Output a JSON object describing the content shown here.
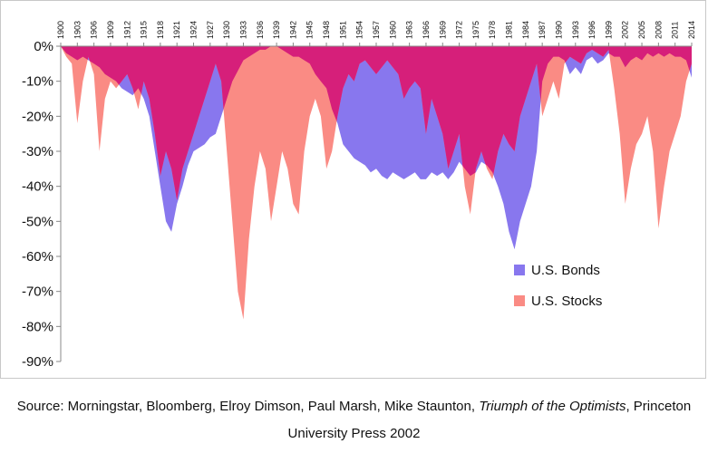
{
  "chart_data": {
    "type": "area",
    "title": "",
    "xlabel": "",
    "ylabel": "",
    "ylim": [
      -90,
      0
    ],
    "yticks": [
      0,
      -10,
      -20,
      -30,
      -40,
      -50,
      -60,
      -70,
      -80,
      -90
    ],
    "ytick_labels": [
      "0%",
      "-10%",
      "-20%",
      "-30%",
      "-40%",
      "-50%",
      "-60%",
      "-70%",
      "-80%",
      "-90%"
    ],
    "xlim": [
      1900,
      2014
    ],
    "xticks": [
      "1900",
      "1903",
      "1906",
      "1909",
      "1912",
      "1915",
      "1918",
      "1921",
      "1924",
      "1927",
      "1930",
      "1933",
      "1936",
      "1939",
      "1942",
      "1945",
      "1948",
      "1951",
      "1954",
      "1957",
      "1960",
      "1963",
      "1966",
      "1969",
      "1972",
      "1975",
      "1978",
      "1981",
      "1984",
      "1987",
      "1990",
      "1993",
      "1996",
      "1999",
      "2002",
      "2005",
      "2008",
      "2011",
      "2014"
    ],
    "legend_position": "right",
    "overlap_color": "#d61f7a",
    "series": [
      {
        "name": "U.S. Bonds",
        "color": "#8877ee",
        "x": [
          1900,
          1901,
          1902,
          1903,
          1904,
          1905,
          1906,
          1907,
          1908,
          1909,
          1910,
          1911,
          1912,
          1913,
          1914,
          1915,
          1916,
          1917,
          1918,
          1919,
          1920,
          1921,
          1922,
          1923,
          1924,
          1925,
          1926,
          1927,
          1928,
          1929,
          1930,
          1931,
          1932,
          1933,
          1934,
          1935,
          1936,
          1937,
          1938,
          1939,
          1940,
          1941,
          1942,
          1943,
          1944,
          1945,
          1946,
          1947,
          1948,
          1949,
          1950,
          1951,
          1952,
          1953,
          1954,
          1955,
          1956,
          1957,
          1958,
          1959,
          1960,
          1961,
          1962,
          1963,
          1964,
          1965,
          1966,
          1967,
          1968,
          1969,
          1970,
          1971,
          1972,
          1973,
          1974,
          1975,
          1976,
          1977,
          1978,
          1979,
          1980,
          1981,
          1982,
          1983,
          1984,
          1985,
          1986,
          1987,
          1988,
          1989,
          1990,
          1991,
          1992,
          1993,
          1994,
          1995,
          1996,
          1997,
          1998,
          1999,
          2000,
          2001,
          2002,
          2003,
          2004,
          2005,
          2006,
          2007,
          2008,
          2009,
          2010,
          2011,
          2012,
          2013,
          2014
        ],
        "values": [
          0,
          -2,
          -3,
          -4,
          -3,
          -4,
          -5,
          -6,
          -8,
          -9,
          -10,
          -12,
          -13,
          -14,
          -12,
          -15,
          -20,
          -30,
          -40,
          -50,
          -53,
          -45,
          -40,
          -34,
          -30,
          -29,
          -28,
          -26,
          -25,
          -20,
          -15,
          -10,
          -7,
          -4,
          -3,
          -2,
          -1,
          -1,
          0,
          0,
          -1,
          -2,
          -3,
          -3,
          -4,
          -5,
          -8,
          -10,
          -12,
          -18,
          -22,
          -28,
          -30,
          -32,
          -33,
          -34,
          -36,
          -35,
          -37,
          -38,
          -36,
          -37,
          -38,
          -37,
          -36,
          -38,
          -38,
          -36,
          -37,
          -36,
          -38,
          -36,
          -33,
          -35,
          -37,
          -36,
          -33,
          -34,
          -36,
          -40,
          -45,
          -53,
          -58,
          -50,
          -45,
          -40,
          -30,
          -10,
          -5,
          -3,
          -3,
          -4,
          -8,
          -6,
          -8,
          -4,
          -3,
          -5,
          -4,
          -2,
          -3,
          -3,
          -6,
          -4,
          -3,
          -4,
          -2,
          -3,
          -2,
          -3,
          -2,
          -3,
          -3,
          -4,
          -9
        ]
      },
      {
        "name": "U.S. Stocks",
        "color": "#fa8b84",
        "x": [
          1900,
          1901,
          1902,
          1903,
          1904,
          1905,
          1906,
          1907,
          1908,
          1909,
          1910,
          1911,
          1912,
          1913,
          1914,
          1915,
          1916,
          1917,
          1918,
          1919,
          1920,
          1921,
          1922,
          1923,
          1924,
          1925,
          1926,
          1927,
          1928,
          1929,
          1930,
          1931,
          1932,
          1933,
          1934,
          1935,
          1936,
          1937,
          1938,
          1939,
          1940,
          1941,
          1942,
          1943,
          1944,
          1945,
          1946,
          1947,
          1948,
          1949,
          1950,
          1951,
          1952,
          1953,
          1954,
          1955,
          1956,
          1957,
          1958,
          1959,
          1960,
          1961,
          1962,
          1963,
          1964,
          1965,
          1966,
          1967,
          1968,
          1969,
          1970,
          1971,
          1972,
          1973,
          1974,
          1975,
          1976,
          1977,
          1978,
          1979,
          1980,
          1981,
          1982,
          1983,
          1984,
          1985,
          1986,
          1987,
          1988,
          1989,
          1990,
          1991,
          1992,
          1993,
          1994,
          1995,
          1996,
          1997,
          1998,
          1999,
          2000,
          2001,
          2002,
          2003,
          2004,
          2005,
          2006,
          2007,
          2008,
          2009,
          2010,
          2011,
          2012,
          2013,
          2014
        ],
        "values": [
          0,
          -3,
          -5,
          -22,
          -10,
          -3,
          -8,
          -30,
          -15,
          -10,
          -12,
          -10,
          -8,
          -12,
          -18,
          -10,
          -15,
          -25,
          -37,
          -30,
          -35,
          -44,
          -35,
          -30,
          -25,
          -20,
          -15,
          -10,
          -5,
          -10,
          -30,
          -50,
          -70,
          -78,
          -55,
          -40,
          -30,
          -35,
          -50,
          -40,
          -30,
          -35,
          -45,
          -48,
          -30,
          -20,
          -15,
          -20,
          -35,
          -30,
          -20,
          -12,
          -8,
          -10,
          -5,
          -4,
          -6,
          -8,
          -6,
          -4,
          -6,
          -8,
          -15,
          -12,
          -10,
          -12,
          -25,
          -15,
          -20,
          -25,
          -35,
          -30,
          -25,
          -40,
          -48,
          -35,
          -30,
          -35,
          -38,
          -30,
          -25,
          -28,
          -30,
          -20,
          -15,
          -10,
          -5,
          -20,
          -15,
          -10,
          -15,
          -5,
          -3,
          -4,
          -5,
          -2,
          -1,
          -2,
          -3,
          -1,
          -12,
          -25,
          -45,
          -35,
          -28,
          -25,
          -20,
          -30,
          -52,
          -40,
          -30,
          -25,
          -20,
          -10,
          -5
        ]
      }
    ]
  },
  "caption": {
    "text_before": "Source: Morningstar, Bloomberg, Elroy Dimson, Paul Marsh, Mike Staunton, ",
    "italic": "Triumph of the Optimists",
    "text_after": ", Princeton University Press 2002"
  }
}
